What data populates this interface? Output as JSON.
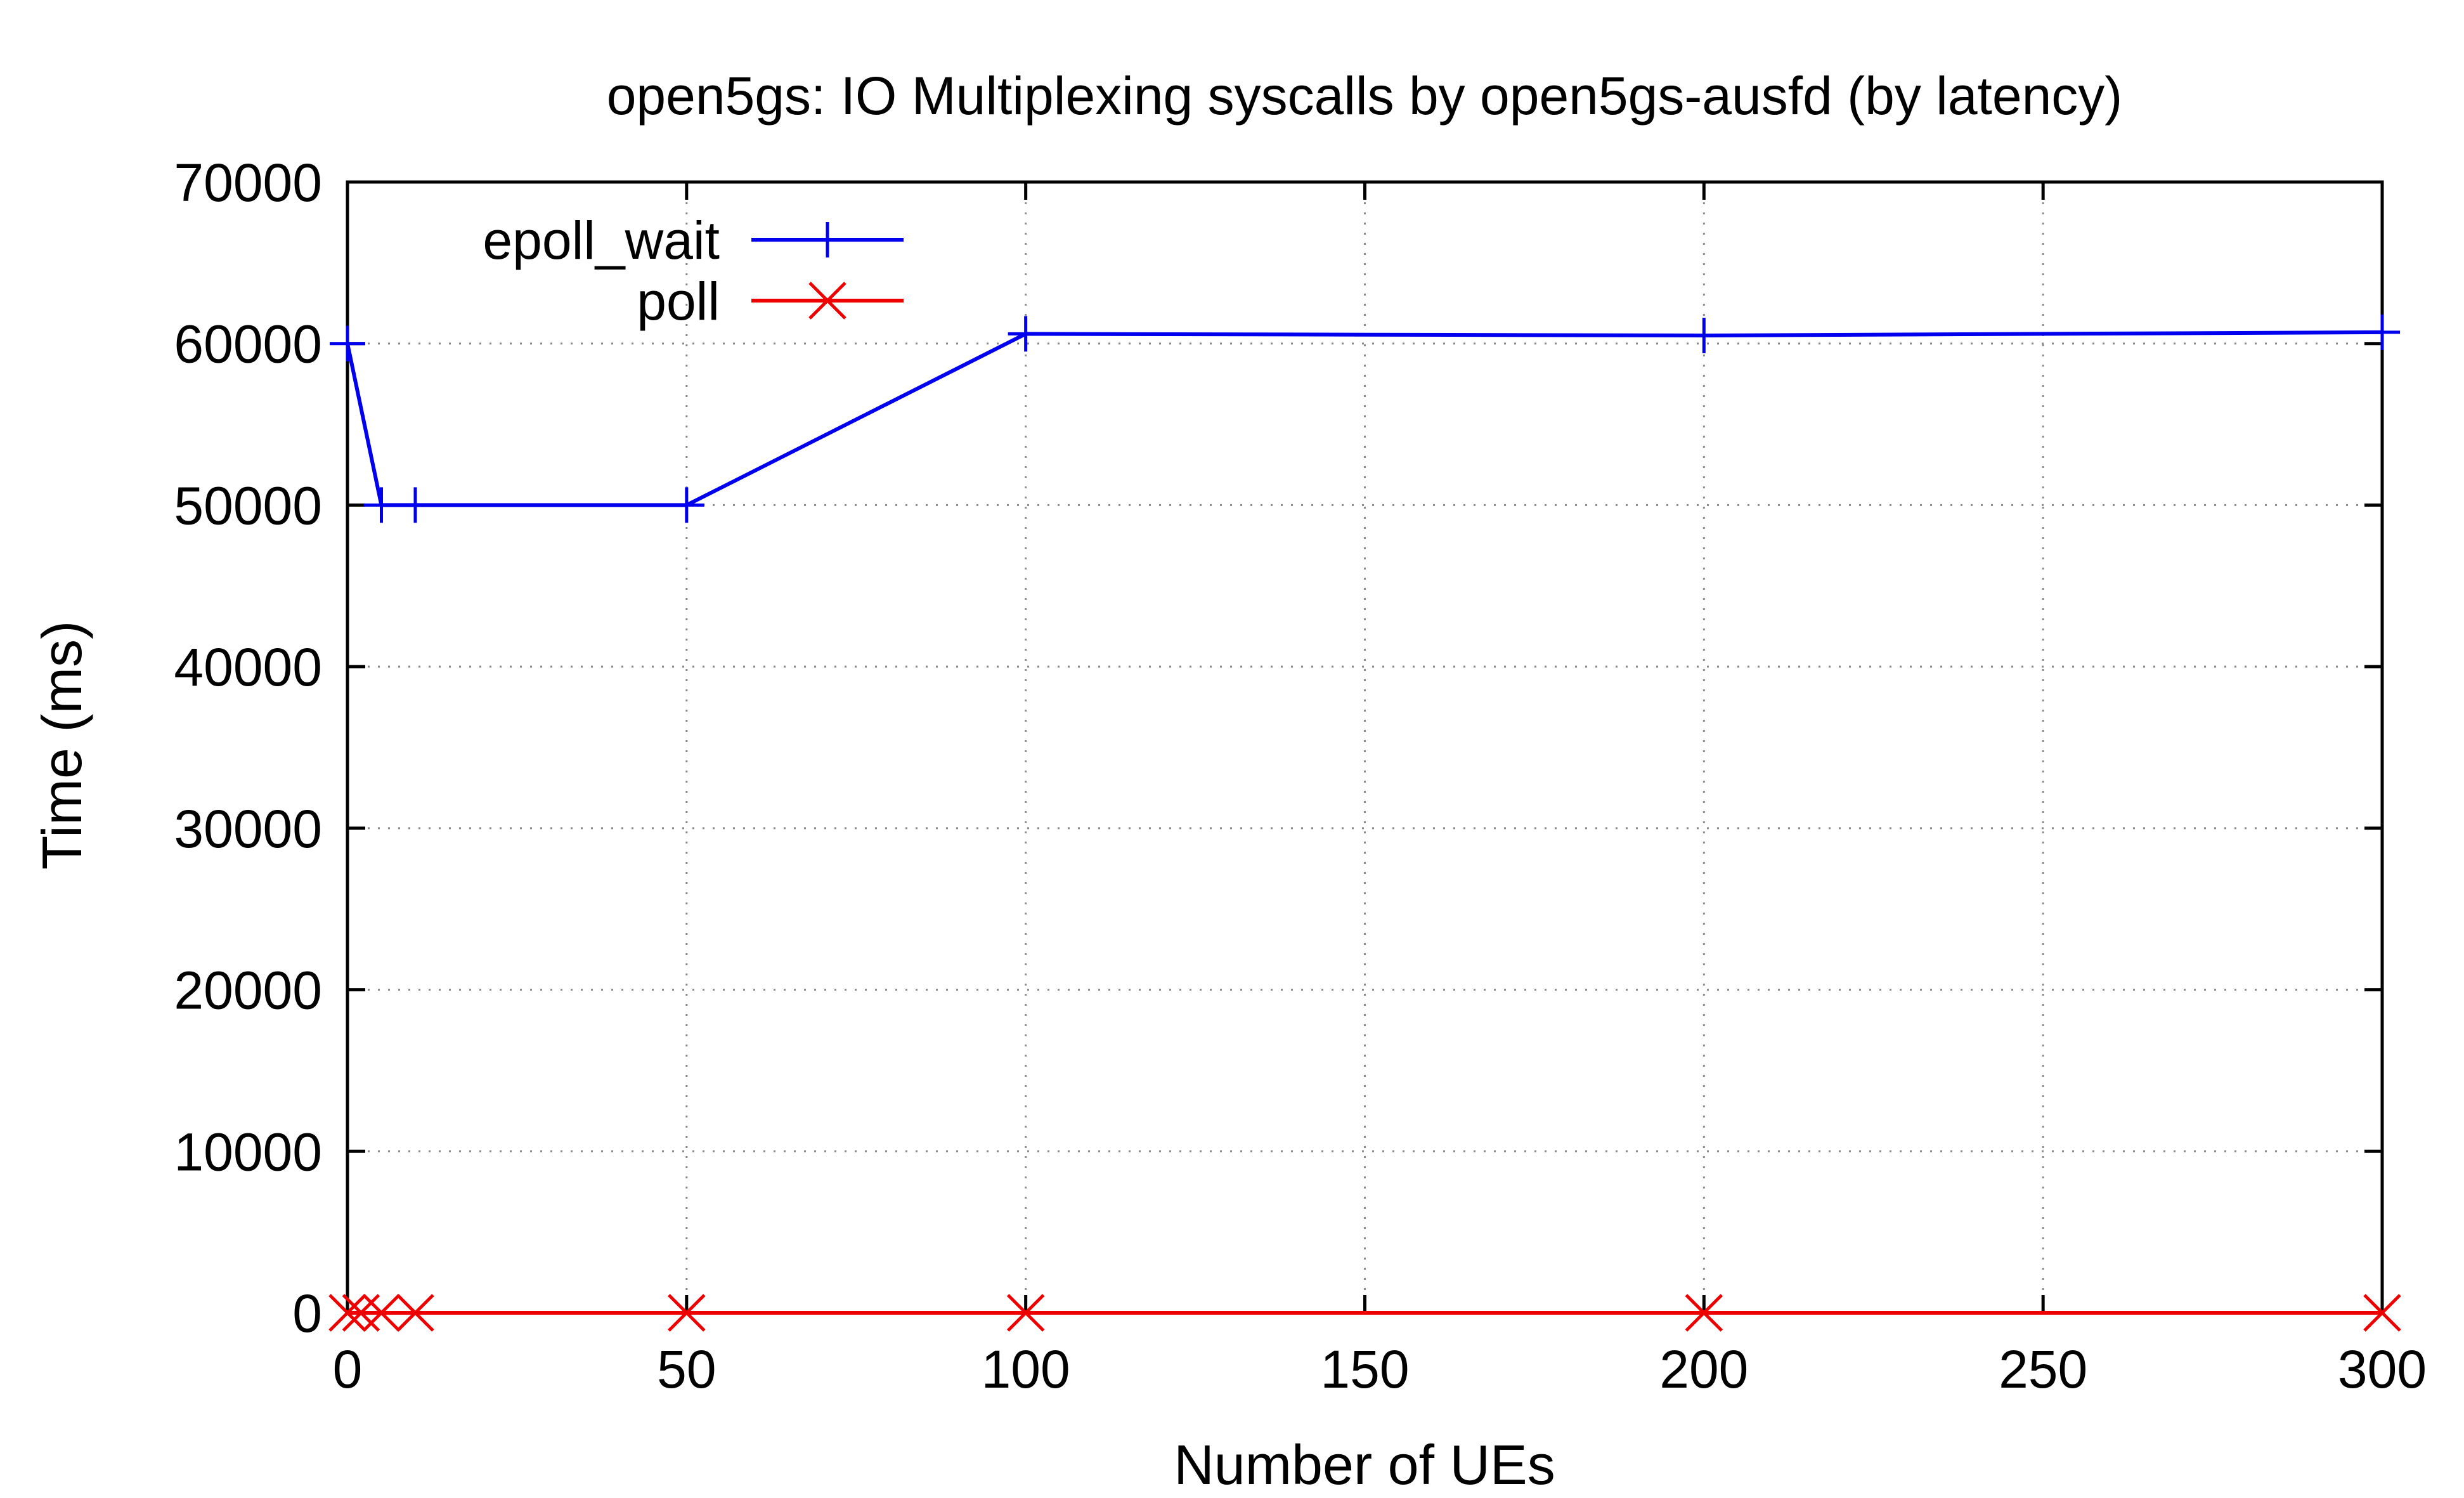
{
  "chart_data": {
    "type": "line",
    "title": "open5gs: IO Multiplexing syscalls by open5gs-ausfd (by latency)",
    "xlabel": "Number of UEs",
    "ylabel": "Time (ms)",
    "xlim": [
      0,
      300
    ],
    "ylim": [
      0,
      70000
    ],
    "xticks": [
      0,
      50,
      100,
      150,
      200,
      250,
      300
    ],
    "yticks": [
      0,
      10000,
      20000,
      30000,
      40000,
      50000,
      60000,
      70000
    ],
    "x_tick_labels": [
      "0",
      "50",
      "100",
      "150",
      "200",
      "250",
      "300"
    ],
    "y_tick_labels": [
      "0",
      "10000",
      "20000",
      "30000",
      "40000",
      "50000",
      "60000",
      "70000"
    ],
    "grid": true,
    "legend_position": "top-left",
    "series": [
      {
        "name": "epoll_wait",
        "color": "#0000ee",
        "marker": "plus",
        "x": [
          0,
          5,
          10,
          50,
          100,
          200,
          300
        ],
        "y": [
          60000,
          50000,
          50000,
          50000,
          60600,
          60500,
          60700
        ]
      },
      {
        "name": "poll",
        "color": "#ee0000",
        "marker": "cross",
        "x": [
          0,
          2,
          5,
          10,
          50,
          100,
          200,
          300
        ],
        "y": [
          0,
          0,
          0,
          0,
          0,
          0,
          0,
          0
        ]
      }
    ]
  }
}
